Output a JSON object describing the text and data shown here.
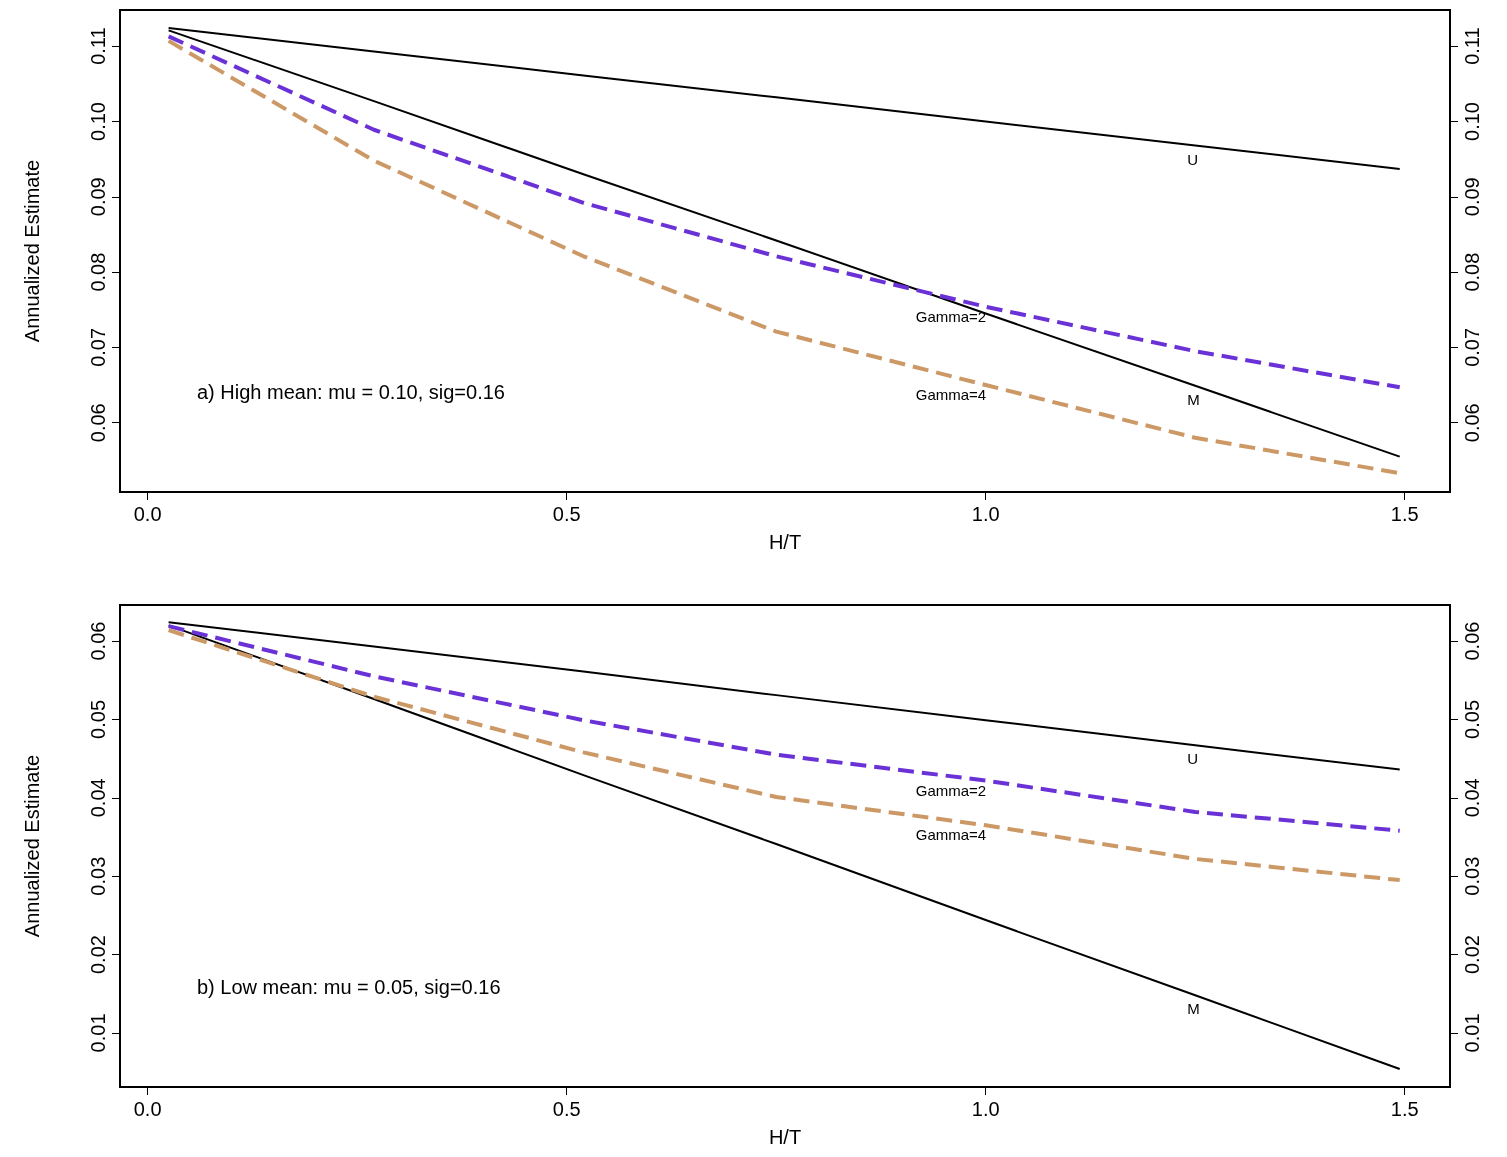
{
  "chart_data": [
    {
      "type": "line",
      "xlabel": "H/T",
      "ylabel": "Annualized Estimate",
      "annotations": [
        "a) High mean: mu = 0.10, sig=0.16"
      ],
      "xlim": [
        -0.033,
        1.554
      ],
      "xticks": [
        {
          "value": 0,
          "label": "0.0"
        },
        {
          "value": 0.5,
          "label": "0.5"
        },
        {
          "value": 1,
          "label": "1.0"
        },
        {
          "value": 1.5,
          "label": "1.5"
        }
      ],
      "ylim": [
        0.0508,
        0.1148
      ],
      "yticks": [
        {
          "value": 0.06,
          "label": "0.06"
        },
        {
          "value": 0.07,
          "label": "0.07"
        },
        {
          "value": 0.08,
          "label": "0.08"
        },
        {
          "value": 0.09,
          "label": "0.09"
        },
        {
          "value": 0.1,
          "label": "0.10"
        },
        {
          "value": 0.11,
          "label": "0.11"
        }
      ],
      "y2lim": [
        0.0508,
        0.1148
      ],
      "y2ticks": [
        {
          "value": 0.06,
          "label": "0.06"
        },
        {
          "value": 0.07,
          "label": "0.07"
        },
        {
          "value": 0.08,
          "label": "0.08"
        },
        {
          "value": 0.09,
          "label": "0.09"
        },
        {
          "value": 0.1,
          "label": "0.10"
        },
        {
          "value": 0.11,
          "label": "0.11"
        }
      ],
      "x": [
        0.025,
        0.27,
        0.52,
        0.75,
        1.0,
        1.25,
        1.494
      ],
      "grid": false,
      "legend": false,
      "marker": "none",
      "series": [
        {
          "name": "U",
          "color": "#000000",
          "line_style": "solid",
          "values": [
            0.1124,
            0.1093,
            0.1061,
            0.1032,
            0.1,
            0.0968,
            0.0937
          ]
        },
        {
          "name": "M",
          "color": "#000000",
          "line_style": "solid",
          "values": [
            0.1121,
            0.1027,
            0.093,
            0.0842,
            0.0745,
            0.0649,
            0.0555
          ]
        },
        {
          "name": "Gamma=2",
          "color": "#6a32d6",
          "line_style": "dashed",
          "values": [
            0.1113,
            0.0989,
            0.0892,
            0.0821,
            0.0754,
            0.0695,
            0.0647
          ]
        },
        {
          "name": "Gamma=4",
          "color": "#cc9966",
          "line_style": "dashed",
          "values": [
            0.1107,
            0.0948,
            0.0821,
            0.0721,
            0.065,
            0.058,
            0.0533
          ]
        }
      ]
    },
    {
      "type": "line",
      "xlabel": "H/T",
      "ylabel": "Annualized Estimate",
      "annotations": [
        "b) Low mean: mu = 0.05, sig=0.16"
      ],
      "xlim": [
        -0.033,
        1.554
      ],
      "xticks": [
        {
          "value": 0,
          "label": "0.0"
        },
        {
          "value": 0.5,
          "label": "0.5"
        },
        {
          "value": 1,
          "label": "1.0"
        },
        {
          "value": 1.5,
          "label": "1.5"
        }
      ],
      "ylim": [
        0.0031,
        0.0646
      ],
      "yticks": [
        {
          "value": 0.01,
          "label": "0.01"
        },
        {
          "value": 0.02,
          "label": "0.02"
        },
        {
          "value": 0.03,
          "label": "0.03"
        },
        {
          "value": 0.04,
          "label": "0.04"
        },
        {
          "value": 0.05,
          "label": "0.05"
        },
        {
          "value": 0.06,
          "label": "0.06"
        }
      ],
      "y2lim": [
        0.0031,
        0.0646
      ],
      "y2ticks": [
        {
          "value": 0.01,
          "label": "0.01"
        },
        {
          "value": 0.02,
          "label": "0.02"
        },
        {
          "value": 0.03,
          "label": "0.03"
        },
        {
          "value": 0.04,
          "label": "0.04"
        },
        {
          "value": 0.05,
          "label": "0.05"
        },
        {
          "value": 0.06,
          "label": "0.06"
        }
      ],
      "x": [
        0.025,
        0.27,
        0.52,
        0.75,
        1.0,
        1.25,
        1.494
      ],
      "grid": false,
      "legend": false,
      "marker": "none",
      "series": [
        {
          "name": "U",
          "color": "#000000",
          "line_style": "solid",
          "values": [
            0.0624,
            0.0593,
            0.0561,
            0.0531,
            0.0499,
            0.0467,
            0.0436
          ]
        },
        {
          "name": "M",
          "color": "#000000",
          "line_style": "solid",
          "values": [
            0.062,
            0.0526,
            0.0429,
            0.0341,
            0.0244,
            0.0148,
            0.0054
          ]
        },
        {
          "name": "Gamma=2",
          "color": "#6a32d6",
          "line_style": "dashed",
          "values": [
            0.0619,
            0.0555,
            0.0499,
            0.0455,
            0.0422,
            0.0382,
            0.0358
          ]
        },
        {
          "name": "Gamma=4",
          "color": "#cc9966",
          "line_style": "dashed",
          "values": [
            0.0614,
            0.0529,
            0.0458,
            0.0401,
            0.0365,
            0.0322,
            0.0295
          ]
        }
      ]
    }
  ]
}
